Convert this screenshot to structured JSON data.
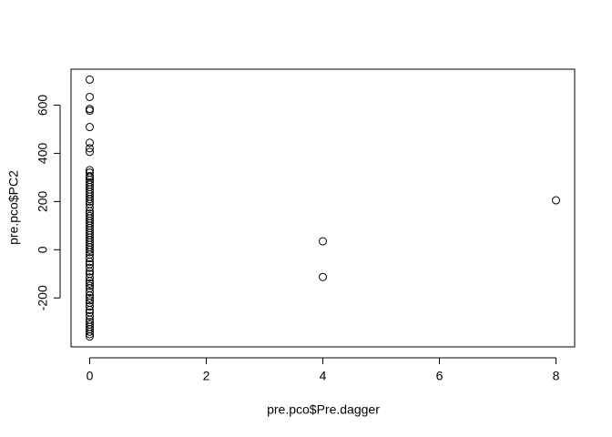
{
  "chart_data": {
    "type": "scatter",
    "x_label": "pre.pco$Pre.dagger",
    "y_label": "pre.pco$PC2",
    "x": [
      0,
      0,
      0,
      0,
      0,
      0,
      0,
      0,
      0,
      0,
      0,
      0,
      0,
      0,
      0,
      0,
      0,
      0,
      0,
      0,
      0,
      0,
      0,
      0,
      0,
      0,
      0,
      0,
      0,
      0,
      0,
      0,
      0,
      0,
      0,
      0,
      0,
      0,
      0,
      0,
      0,
      0,
      0,
      0,
      0,
      0,
      0,
      0,
      0,
      0,
      0,
      0,
      0,
      0,
      0,
      0,
      0,
      0,
      0,
      0,
      0,
      0,
      0,
      0,
      0,
      0,
      0,
      0,
      0,
      0,
      0,
      4,
      4,
      8
    ],
    "y": [
      706,
      634,
      584,
      577,
      509,
      444,
      421,
      406,
      330,
      320,
      305,
      300,
      290,
      280,
      270,
      260,
      250,
      240,
      230,
      220,
      210,
      200,
      190,
      175,
      160,
      150,
      140,
      130,
      120,
      110,
      100,
      90,
      80,
      70,
      60,
      50,
      40,
      30,
      20,
      10,
      0,
      -10,
      -20,
      -35,
      -50,
      -60,
      -75,
      -90,
      -100,
      -115,
      -130,
      -140,
      -150,
      -160,
      -175,
      -190,
      -200,
      -210,
      -220,
      -235,
      -250,
      -260,
      -275,
      -290,
      -300,
      -310,
      -320,
      -330,
      -340,
      -350,
      -360,
      35,
      -113,
      205
    ],
    "color": "#000000",
    "xlim": [
      -0.32,
      8.32
    ],
    "ylim": [
      -403,
      749
    ],
    "xticks": [
      0,
      2,
      4,
      6,
      8
    ],
    "yticks": [
      -200,
      0,
      200,
      400,
      600
    ]
  }
}
